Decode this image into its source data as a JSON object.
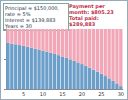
{
  "chart_data": {
    "type": "bar",
    "stacked": true,
    "annotations": [
      "Principal = $150,000, rate = 5%",
      "Interest = $139,883",
      "Years = 30",
      "Payment per month: $805.23",
      "Total paid: $289,883"
    ],
    "categories": [
      null,
      null,
      null,
      null,
      "5",
      null,
      null,
      null,
      null,
      "10",
      null,
      null,
      null,
      null,
      "15",
      null,
      null,
      null,
      null,
      "20",
      null,
      null,
      null,
      null,
      "25",
      null,
      null,
      null,
      null,
      "30"
    ],
    "series": [
      {
        "color": "#6b9fc9",
        "values": [
          76.9,
          75.7,
          74.5,
          73.2,
          71.9,
          70.5,
          69.0,
          67.4,
          65.8,
          64.1,
          62.3,
          60.4,
          58.4,
          56.4,
          54.2,
          51.9,
          49.5,
          47.0,
          44.3,
          41.5,
          38.6,
          35.5,
          32.3,
          28.9,
          25.4,
          21.6,
          17.7,
          13.6,
          9.3,
          4.8
        ]
      },
      {
        "color": "#f2a7b8",
        "values": [
          23.1,
          24.3,
          25.5,
          26.8,
          28.1,
          29.5,
          31.0,
          32.6,
          34.2,
          35.9,
          37.7,
          39.6,
          41.6,
          43.6,
          45.8,
          48.1,
          50.5,
          53.0,
          55.7,
          58.5,
          61.4,
          64.5,
          67.7,
          71.1,
          74.6,
          78.4,
          82.3,
          86.4,
          90.7,
          95.2
        ]
      }
    ],
    "ylim": [
      0,
      100
    ],
    "yticks": [
      0,
      50,
      100
    ],
    "tick_labels": "x",
    "grid": false
  }
}
